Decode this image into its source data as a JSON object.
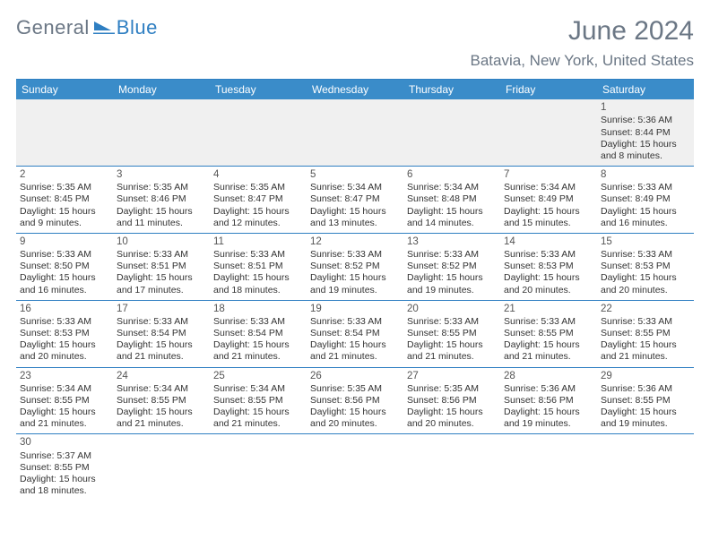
{
  "logo": {
    "word1": "General",
    "word2": "Blue"
  },
  "title": "June 2024",
  "location": "Batavia, New York, United States",
  "colors": {
    "header_bg": "#3a8cc9",
    "rule": "#2f7fc2",
    "text_muted": "#6b7785",
    "first_week_bg": "#f0f0f0"
  },
  "dow": [
    "Sunday",
    "Monday",
    "Tuesday",
    "Wednesday",
    "Thursday",
    "Friday",
    "Saturday"
  ],
  "weeks": [
    [
      null,
      null,
      null,
      null,
      null,
      null,
      {
        "n": "1",
        "sr": "Sunrise: 5:36 AM",
        "ss": "Sunset: 8:44 PM",
        "d1": "Daylight: 15 hours",
        "d2": "and 8 minutes."
      }
    ],
    [
      {
        "n": "2",
        "sr": "Sunrise: 5:35 AM",
        "ss": "Sunset: 8:45 PM",
        "d1": "Daylight: 15 hours",
        "d2": "and 9 minutes."
      },
      {
        "n": "3",
        "sr": "Sunrise: 5:35 AM",
        "ss": "Sunset: 8:46 PM",
        "d1": "Daylight: 15 hours",
        "d2": "and 11 minutes."
      },
      {
        "n": "4",
        "sr": "Sunrise: 5:35 AM",
        "ss": "Sunset: 8:47 PM",
        "d1": "Daylight: 15 hours",
        "d2": "and 12 minutes."
      },
      {
        "n": "5",
        "sr": "Sunrise: 5:34 AM",
        "ss": "Sunset: 8:47 PM",
        "d1": "Daylight: 15 hours",
        "d2": "and 13 minutes."
      },
      {
        "n": "6",
        "sr": "Sunrise: 5:34 AM",
        "ss": "Sunset: 8:48 PM",
        "d1": "Daylight: 15 hours",
        "d2": "and 14 minutes."
      },
      {
        "n": "7",
        "sr": "Sunrise: 5:34 AM",
        "ss": "Sunset: 8:49 PM",
        "d1": "Daylight: 15 hours",
        "d2": "and 15 minutes."
      },
      {
        "n": "8",
        "sr": "Sunrise: 5:33 AM",
        "ss": "Sunset: 8:49 PM",
        "d1": "Daylight: 15 hours",
        "d2": "and 16 minutes."
      }
    ],
    [
      {
        "n": "9",
        "sr": "Sunrise: 5:33 AM",
        "ss": "Sunset: 8:50 PM",
        "d1": "Daylight: 15 hours",
        "d2": "and 16 minutes."
      },
      {
        "n": "10",
        "sr": "Sunrise: 5:33 AM",
        "ss": "Sunset: 8:51 PM",
        "d1": "Daylight: 15 hours",
        "d2": "and 17 minutes."
      },
      {
        "n": "11",
        "sr": "Sunrise: 5:33 AM",
        "ss": "Sunset: 8:51 PM",
        "d1": "Daylight: 15 hours",
        "d2": "and 18 minutes."
      },
      {
        "n": "12",
        "sr": "Sunrise: 5:33 AM",
        "ss": "Sunset: 8:52 PM",
        "d1": "Daylight: 15 hours",
        "d2": "and 19 minutes."
      },
      {
        "n": "13",
        "sr": "Sunrise: 5:33 AM",
        "ss": "Sunset: 8:52 PM",
        "d1": "Daylight: 15 hours",
        "d2": "and 19 minutes."
      },
      {
        "n": "14",
        "sr": "Sunrise: 5:33 AM",
        "ss": "Sunset: 8:53 PM",
        "d1": "Daylight: 15 hours",
        "d2": "and 20 minutes."
      },
      {
        "n": "15",
        "sr": "Sunrise: 5:33 AM",
        "ss": "Sunset: 8:53 PM",
        "d1": "Daylight: 15 hours",
        "d2": "and 20 minutes."
      }
    ],
    [
      {
        "n": "16",
        "sr": "Sunrise: 5:33 AM",
        "ss": "Sunset: 8:53 PM",
        "d1": "Daylight: 15 hours",
        "d2": "and 20 minutes."
      },
      {
        "n": "17",
        "sr": "Sunrise: 5:33 AM",
        "ss": "Sunset: 8:54 PM",
        "d1": "Daylight: 15 hours",
        "d2": "and 21 minutes."
      },
      {
        "n": "18",
        "sr": "Sunrise: 5:33 AM",
        "ss": "Sunset: 8:54 PM",
        "d1": "Daylight: 15 hours",
        "d2": "and 21 minutes."
      },
      {
        "n": "19",
        "sr": "Sunrise: 5:33 AM",
        "ss": "Sunset: 8:54 PM",
        "d1": "Daylight: 15 hours",
        "d2": "and 21 minutes."
      },
      {
        "n": "20",
        "sr": "Sunrise: 5:33 AM",
        "ss": "Sunset: 8:55 PM",
        "d1": "Daylight: 15 hours",
        "d2": "and 21 minutes."
      },
      {
        "n": "21",
        "sr": "Sunrise: 5:33 AM",
        "ss": "Sunset: 8:55 PM",
        "d1": "Daylight: 15 hours",
        "d2": "and 21 minutes."
      },
      {
        "n": "22",
        "sr": "Sunrise: 5:33 AM",
        "ss": "Sunset: 8:55 PM",
        "d1": "Daylight: 15 hours",
        "d2": "and 21 minutes."
      }
    ],
    [
      {
        "n": "23",
        "sr": "Sunrise: 5:34 AM",
        "ss": "Sunset: 8:55 PM",
        "d1": "Daylight: 15 hours",
        "d2": "and 21 minutes."
      },
      {
        "n": "24",
        "sr": "Sunrise: 5:34 AM",
        "ss": "Sunset: 8:55 PM",
        "d1": "Daylight: 15 hours",
        "d2": "and 21 minutes."
      },
      {
        "n": "25",
        "sr": "Sunrise: 5:34 AM",
        "ss": "Sunset: 8:55 PM",
        "d1": "Daylight: 15 hours",
        "d2": "and 21 minutes."
      },
      {
        "n": "26",
        "sr": "Sunrise: 5:35 AM",
        "ss": "Sunset: 8:56 PM",
        "d1": "Daylight: 15 hours",
        "d2": "and 20 minutes."
      },
      {
        "n": "27",
        "sr": "Sunrise: 5:35 AM",
        "ss": "Sunset: 8:56 PM",
        "d1": "Daylight: 15 hours",
        "d2": "and 20 minutes."
      },
      {
        "n": "28",
        "sr": "Sunrise: 5:36 AM",
        "ss": "Sunset: 8:56 PM",
        "d1": "Daylight: 15 hours",
        "d2": "and 19 minutes."
      },
      {
        "n": "29",
        "sr": "Sunrise: 5:36 AM",
        "ss": "Sunset: 8:55 PM",
        "d1": "Daylight: 15 hours",
        "d2": "and 19 minutes."
      }
    ],
    [
      {
        "n": "30",
        "sr": "Sunrise: 5:37 AM",
        "ss": "Sunset: 8:55 PM",
        "d1": "Daylight: 15 hours",
        "d2": "and 18 minutes."
      },
      null,
      null,
      null,
      null,
      null,
      null
    ]
  ]
}
